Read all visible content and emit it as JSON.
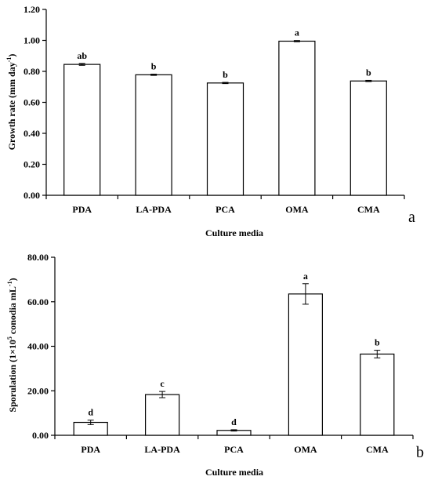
{
  "chart_data": [
    {
      "type": "bar",
      "panel_label": "a",
      "categories": [
        "PDA",
        "LA-PDA",
        "PCA",
        "OMA",
        "CMA"
      ],
      "values": [
        0.845,
        0.778,
        0.725,
        0.995,
        0.738
      ],
      "errors": [
        0.006,
        0.004,
        0.004,
        0.004,
        0.004
      ],
      "significance": [
        "ab",
        "b",
        "b",
        "a",
        "b"
      ],
      "xlabel": "Culture media",
      "ylabel_main": "Growth rate (mm day",
      "ylabel_sup": "-1",
      "ylabel_tail": ")",
      "ylim": [
        0,
        1.2
      ],
      "yticks": [
        "0.00",
        "0.20",
        "0.40",
        "0.60",
        "0.80",
        "1.00",
        "1.20"
      ],
      "bar_fill": "#ffffff",
      "bar_stroke": "#000000",
      "grid": false
    },
    {
      "type": "bar",
      "panel_label": "b",
      "categories": [
        "PDA",
        "LA-PDA",
        "PCA",
        "OMA",
        "CMA"
      ],
      "values": [
        5.8,
        18.3,
        2.2,
        63.5,
        36.5
      ],
      "errors": [
        1.0,
        1.4,
        0.3,
        4.6,
        1.7
      ],
      "significance": [
        "d",
        "c",
        "d",
        "a",
        "b"
      ],
      "xlabel": "Culture media",
      "ylabel_main": "Sporulation (1×10",
      "ylabel_sup": "5",
      "ylabel_tail": " conodia mL",
      "ylabel_sup2": "-1",
      "ylabel_tail2": ")",
      "ylim": [
        0,
        80
      ],
      "yticks": [
        "0.00",
        "20.00",
        "40.00",
        "60.00",
        "80.00"
      ],
      "bar_fill": "#ffffff",
      "bar_stroke": "#000000",
      "grid": false
    }
  ]
}
